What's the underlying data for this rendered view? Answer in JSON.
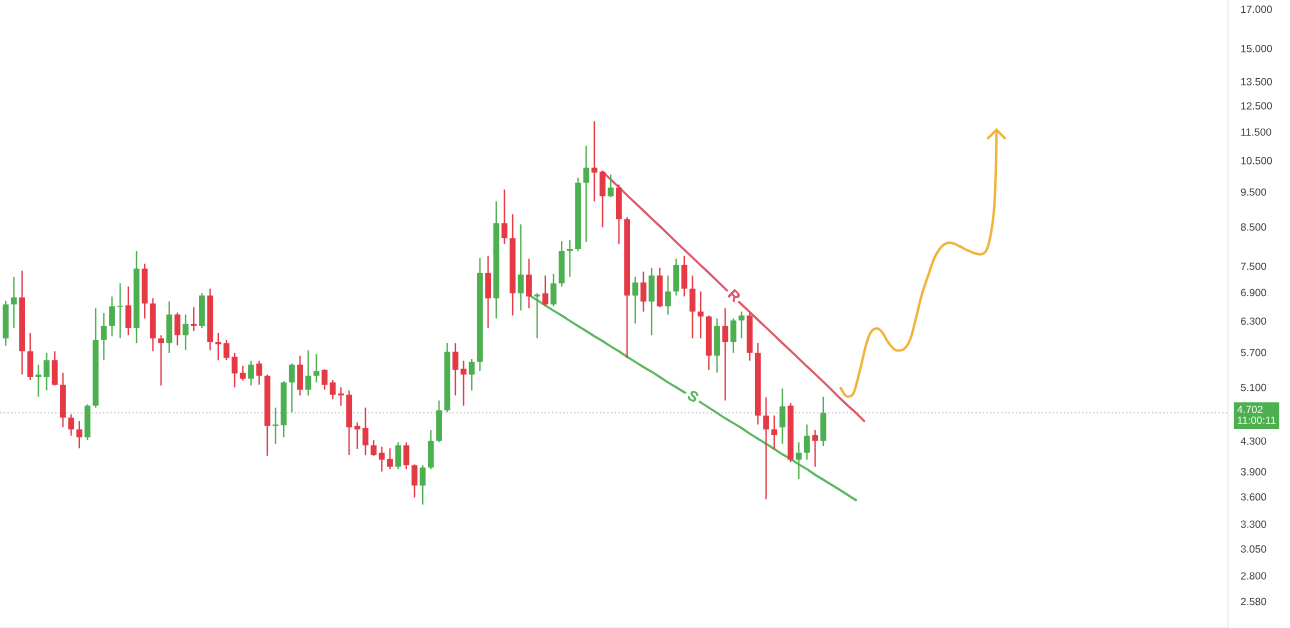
{
  "chart_data": {
    "type": "candlestick",
    "categories": [
      null,
      null,
      null,
      null,
      null,
      null,
      null,
      null,
      null,
      null,
      null,
      null,
      null,
      null,
      null,
      null,
      null,
      null,
      null,
      null,
      null,
      null,
      null,
      null,
      null,
      null,
      null,
      null,
      null,
      null,
      null,
      null,
      null,
      null,
      null,
      null,
      null,
      null,
      null,
      null,
      null,
      null,
      null,
      null,
      null,
      null,
      null,
      null,
      null,
      null,
      null,
      null,
      null,
      null,
      null,
      null,
      null,
      null,
      null,
      null,
      null,
      null,
      null,
      null,
      null,
      null,
      null,
      null,
      null,
      null,
      null,
      null,
      null,
      null,
      null,
      null,
      null,
      null,
      null,
      null,
      null,
      null,
      null,
      null,
      null,
      null,
      null,
      null,
      null,
      null,
      null,
      null,
      null,
      null,
      null,
      null,
      null,
      null,
      null,
      null,
      null,
      null,
      null,
      null,
      null,
      null,
      null,
      null,
      null,
      null,
      null,
      null,
      null,
      null,
      null,
      null,
      null,
      null,
      null,
      null,
      null,
      null,
      null,
      null,
      null,
      null,
      null,
      null,
      null,
      null,
      null,
      null,
      null,
      null,
      null,
      null,
      null,
      null,
      null,
      null,
      null,
      null,
      null,
      null,
      null,
      null,
      null,
      null,
      null,
      null
    ],
    "ohlc": [
      [
        5.96,
        6.72,
        5.82,
        6.64
      ],
      [
        6.64,
        7.25,
        6.16,
        6.79
      ],
      [
        6.79,
        7.39,
        5.31,
        5.72
      ],
      [
        5.72,
        6.06,
        5.22,
        5.27
      ],
      [
        5.27,
        5.48,
        4.95,
        5.31
      ],
      [
        5.27,
        5.69,
        5.05,
        5.56
      ],
      [
        5.56,
        5.72,
        5.13,
        5.14
      ],
      [
        5.14,
        5.34,
        4.49,
        4.63
      ],
      [
        4.63,
        4.68,
        4.37,
        4.46
      ],
      [
        4.46,
        4.58,
        4.2,
        4.35
      ],
      [
        4.35,
        4.83,
        4.31,
        4.81
      ],
      [
        4.81,
        6.56,
        4.78,
        5.93
      ],
      [
        5.93,
        6.46,
        5.56,
        6.2
      ],
      [
        6.2,
        6.81,
        6.0,
        6.6
      ],
      [
        6.59,
        7.1,
        5.96,
        6.61
      ],
      [
        6.62,
        7.03,
        6.02,
        6.16
      ],
      [
        6.16,
        7.87,
        5.87,
        7.44
      ],
      [
        7.44,
        7.56,
        6.35,
        6.66
      ],
      [
        6.66,
        6.77,
        5.72,
        5.96
      ],
      [
        5.96,
        6.02,
        5.13,
        5.87
      ],
      [
        5.87,
        6.7,
        5.69,
        6.43
      ],
      [
        6.43,
        6.47,
        5.83,
        6.02
      ],
      [
        6.02,
        6.43,
        5.74,
        6.24
      ],
      [
        6.24,
        6.58,
        6.1,
        6.2
      ],
      [
        6.2,
        6.88,
        6.16,
        6.83
      ],
      [
        6.83,
        6.98,
        5.74,
        5.89
      ],
      [
        5.89,
        6.06,
        5.56,
        5.85
      ],
      [
        5.87,
        5.93,
        5.56,
        5.6
      ],
      [
        5.62,
        5.69,
        5.1,
        5.33
      ],
      [
        5.34,
        5.46,
        5.21,
        5.24
      ],
      [
        5.24,
        5.55,
        5.13,
        5.48
      ],
      [
        5.5,
        5.55,
        5.14,
        5.29
      ],
      [
        5.29,
        5.31,
        4.1,
        4.51
      ],
      [
        4.51,
        4.78,
        4.26,
        4.53
      ],
      [
        4.52,
        5.2,
        4.35,
        5.18
      ],
      [
        5.18,
        5.5,
        4.71,
        5.48
      ],
      [
        5.48,
        5.64,
        4.97,
        5.06
      ],
      [
        5.06,
        5.74,
        4.97,
        5.29
      ],
      [
        5.29,
        5.67,
        5.18,
        5.37
      ],
      [
        5.39,
        5.4,
        5.06,
        5.14
      ],
      [
        5.18,
        5.22,
        4.91,
        4.98
      ],
      [
        5.0,
        5.1,
        4.81,
        4.97
      ],
      [
        4.98,
        5.05,
        4.11,
        4.49
      ],
      [
        4.51,
        4.56,
        4.19,
        4.46
      ],
      [
        4.48,
        4.78,
        4.11,
        4.24
      ],
      [
        4.24,
        4.31,
        4.1,
        4.11
      ],
      [
        4.14,
        4.22,
        3.9,
        4.05
      ],
      [
        4.06,
        4.2,
        3.93,
        3.96
      ],
      [
        3.96,
        4.28,
        3.93,
        4.24
      ],
      [
        4.24,
        4.28,
        3.93,
        3.98
      ],
      [
        3.98,
        3.99,
        3.59,
        3.73
      ],
      [
        3.73,
        3.98,
        3.51,
        3.95
      ],
      [
        3.95,
        4.45,
        3.93,
        4.3
      ],
      [
        4.3,
        4.89,
        4.28,
        4.74
      ],
      [
        4.74,
        5.87,
        4.71,
        5.71
      ],
      [
        5.71,
        5.87,
        4.97,
        5.39
      ],
      [
        5.41,
        5.55,
        4.81,
        5.31
      ],
      [
        5.31,
        5.58,
        5.05,
        5.53
      ],
      [
        5.53,
        7.7,
        5.37,
        7.34
      ],
      [
        7.34,
        7.75,
        6.16,
        6.77
      ],
      [
        6.77,
        9.22,
        6.35,
        8.6
      ],
      [
        8.6,
        9.57,
        8.05,
        8.2
      ],
      [
        8.2,
        8.85,
        6.41,
        6.88
      ],
      [
        6.88,
        8.57,
        6.51,
        7.3
      ],
      [
        7.3,
        7.68,
        6.56,
        6.81
      ],
      [
        6.81,
        6.88,
        5.96,
        6.85
      ],
      [
        6.88,
        7.28,
        6.6,
        6.64
      ],
      [
        6.64,
        7.32,
        6.6,
        7.1
      ],
      [
        7.1,
        8.12,
        7.03,
        7.87
      ],
      [
        7.87,
        8.15,
        7.25,
        7.92
      ],
      [
        7.92,
        9.94,
        7.87,
        9.78
      ],
      [
        9.78,
        11.0,
        8.1,
        10.26
      ],
      [
        10.26,
        11.9,
        9.22,
        10.1
      ],
      [
        10.13,
        10.16,
        8.49,
        9.37
      ],
      [
        9.37,
        10.04,
        9.34,
        9.63
      ],
      [
        9.63,
        9.73,
        8.05,
        8.71
      ],
      [
        8.71,
        8.77,
        5.6,
        6.83
      ],
      [
        6.83,
        7.25,
        6.25,
        7.12
      ],
      [
        7.12,
        7.37,
        6.49,
        6.7
      ],
      [
        6.7,
        7.46,
        6.02,
        7.28
      ],
      [
        7.28,
        7.46,
        6.58,
        6.6
      ],
      [
        6.6,
        7.28,
        6.43,
        6.92
      ],
      [
        6.92,
        7.68,
        6.83,
        7.53
      ],
      [
        7.53,
        7.75,
        6.81,
        6.98
      ],
      [
        6.98,
        7.28,
        5.96,
        6.49
      ],
      [
        6.49,
        6.92,
        5.96,
        6.39
      ],
      [
        6.39,
        6.41,
        5.39,
        5.64
      ],
      [
        5.64,
        6.35,
        5.34,
        6.2
      ],
      [
        6.2,
        6.56,
        4.89,
        5.89
      ],
      [
        5.89,
        6.35,
        5.69,
        6.31
      ],
      [
        6.31,
        6.49,
        5.96,
        6.41
      ],
      [
        6.41,
        6.46,
        5.55,
        5.69
      ],
      [
        5.69,
        5.87,
        4.53,
        4.66
      ],
      [
        4.66,
        4.94,
        3.57,
        4.46
      ],
      [
        4.46,
        4.66,
        4.19,
        4.38
      ],
      [
        4.49,
        5.08,
        4.26,
        4.8
      ],
      [
        4.81,
        4.85,
        4.02,
        4.05
      ],
      [
        4.05,
        4.28,
        3.81,
        4.14
      ],
      [
        4.14,
        4.53,
        4.05,
        4.37
      ],
      [
        4.38,
        4.45,
        3.96,
        4.3
      ],
      [
        4.3,
        4.95,
        4.23,
        4.7
      ],
      null,
      null,
      null,
      null,
      null,
      null,
      null,
      null,
      null,
      null,
      null,
      null,
      null,
      null,
      null,
      null,
      null,
      null,
      null,
      null,
      null,
      null,
      null,
      null,
      null,
      null,
      null,
      null,
      null,
      null,
      null,
      null,
      null,
      null,
      null,
      null,
      null,
      null,
      null,
      null,
      null,
      null,
      null,
      null,
      null,
      null,
      null,
      null,
      null
    ],
    "colors": [
      "#4caf50",
      "#4caf50",
      "#e53945",
      "#e53945",
      "#4caf50",
      "#4caf50",
      "#e53945",
      "#e53945",
      "#e53945",
      "#e53945",
      "#4caf50",
      "#4caf50",
      "#4caf50",
      "#4caf50",
      "#4caf50",
      "#e53945",
      "#4caf50",
      "#e53945",
      "#e53945",
      "#e53945",
      "#4caf50",
      "#e53945",
      "#4caf50",
      "#e53945",
      "#4caf50",
      "#e53945",
      "#e53945",
      "#e53945",
      "#e53945",
      "#e53945",
      "#4caf50",
      "#e53945",
      "#e53945",
      "#4caf50",
      "#4caf50",
      "#4caf50",
      "#e53945",
      "#4caf50",
      "#4caf50",
      "#e53945",
      "#e53945",
      "#e53945",
      "#e53945",
      "#e53945",
      "#e53945",
      "#e53945",
      "#e53945",
      "#e53945",
      "#4caf50",
      "#e53945",
      "#e53945",
      "#4caf50",
      "#4caf50",
      "#4caf50",
      "#4caf50",
      "#e53945",
      "#e53945",
      "#4caf50",
      "#4caf50",
      "#e53945",
      "#4caf50",
      "#e53945",
      "#e53945",
      "#4caf50",
      "#e53945",
      "#4caf50",
      "#e53945",
      "#4caf50",
      "#4caf50",
      "#4caf50",
      "#4caf50",
      "#4caf50",
      "#e53945",
      "#e53945",
      "#4caf50",
      "#e53945",
      "#e53945",
      "#4caf50",
      "#e53945",
      "#4caf50",
      "#e53945",
      "#4caf50",
      "#4caf50",
      "#e53945",
      "#e53945",
      "#e53945",
      "#e53945",
      "#4caf50",
      "#e53945",
      "#4caf50",
      "#4caf50",
      "#e53945",
      "#e53945",
      "#e53945",
      "#e53945",
      "#4caf50",
      "#e53945",
      "#4caf50",
      "#4caf50",
      "#e53945",
      "#4caf50",
      null,
      null,
      null,
      null,
      null,
      null,
      null,
      null,
      null,
      null,
      null,
      null,
      null,
      null,
      null,
      null,
      null,
      null,
      null,
      null,
      null,
      null,
      null,
      null,
      null,
      null,
      null,
      null,
      null,
      null,
      null,
      null,
      null,
      null,
      null,
      null,
      null,
      null,
      null,
      null,
      null,
      null,
      null,
      null,
      null,
      null,
      null,
      null,
      null
    ],
    "series": [
      {
        "type": "line",
        "name": "R",
        "color": "#e0596a",
        "values": [
          null,
          null,
          null,
          null,
          null,
          null,
          null,
          null,
          null,
          null,
          null,
          null,
          null,
          null,
          null,
          null,
          null,
          null,
          null,
          null,
          null,
          null,
          null,
          null,
          null,
          null,
          null,
          null,
          null,
          null,
          null,
          null,
          null,
          null,
          null,
          null,
          null,
          null,
          null,
          null,
          null,
          null,
          null,
          null,
          null,
          null,
          null,
          null,
          null,
          null,
          null,
          null,
          null,
          null,
          null,
          null,
          null,
          null,
          null,
          null,
          null,
          null,
          null,
          null,
          null,
          null,
          null,
          null,
          null,
          null,
          null,
          null,
          null,
          10.13,
          9.88,
          9.64,
          9.4,
          9.17,
          8.95,
          8.73,
          8.52,
          8.31,
          8.1,
          7.9,
          7.71,
          7.52,
          7.34,
          7.16,
          6.98,
          6.81,
          6.64,
          6.48,
          6.32,
          6.17,
          6.02,
          5.87,
          5.73,
          5.59,
          5.45,
          5.32,
          5.19,
          5.06,
          4.93,
          4.81,
          4.7,
          4.58,
          null,
          null,
          null,
          null,
          null,
          null,
          null,
          null,
          null,
          null,
          null,
          null,
          null,
          null,
          null,
          null,
          null,
          null,
          null,
          null,
          null,
          null,
          null,
          null,
          null,
          null,
          null,
          null,
          null,
          null,
          null,
          null,
          null,
          null,
          null,
          null,
          null,
          null,
          null,
          null,
          null,
          null,
          null,
          null
        ]
      },
      {
        "type": "line",
        "name": "S",
        "color": "#5cb860",
        "values": [
          null,
          null,
          null,
          null,
          null,
          null,
          null,
          null,
          null,
          null,
          null,
          null,
          null,
          null,
          null,
          null,
          null,
          null,
          null,
          null,
          null,
          null,
          null,
          null,
          null,
          null,
          null,
          null,
          null,
          null,
          null,
          null,
          null,
          null,
          null,
          null,
          null,
          null,
          null,
          null,
          null,
          null,
          null,
          null,
          null,
          null,
          null,
          null,
          null,
          null,
          null,
          null,
          null,
          null,
          null,
          null,
          null,
          null,
          null,
          null,
          null,
          null,
          null,
          null,
          6.84,
          6.73,
          6.62,
          6.51,
          6.41,
          6.3,
          6.2,
          6.1,
          6.0,
          5.91,
          5.81,
          5.72,
          5.62,
          5.53,
          5.44,
          5.36,
          5.27,
          5.18,
          5.1,
          5.02,
          4.94,
          4.86,
          4.78,
          4.7,
          4.62,
          4.55,
          4.48,
          4.4,
          4.33,
          4.26,
          4.19,
          4.12,
          4.06,
          3.99,
          3.93,
          3.86,
          3.8,
          3.74,
          3.68,
          3.62,
          3.56,
          null,
          null,
          null,
          null,
          null,
          null,
          null,
          null,
          null,
          null,
          null,
          null,
          null,
          null,
          null,
          null,
          null,
          null,
          null,
          null,
          null,
          null,
          null,
          null,
          null,
          null,
          null,
          null,
          null,
          null,
          null,
          null,
          null,
          null,
          null,
          null,
          null,
          null,
          null,
          null,
          null,
          null,
          null,
          null,
          null
        ]
      }
    ],
    "log": true,
    "ylim": [
      2.37,
      17.5
    ],
    "yticks": [
      {
        "value": 2.58,
        "label": "2.580"
      },
      {
        "value": 2.8,
        "label": "2.800"
      },
      {
        "value": 3.05,
        "label": "3.050"
      },
      {
        "value": 3.3,
        "label": "3.300"
      },
      {
        "value": 3.6,
        "label": "3.600"
      },
      {
        "value": 3.9,
        "label": "3.900"
      },
      {
        "value": 4.3,
        "label": "4.300"
      },
      {
        "value": 5.1,
        "label": "5.100"
      },
      {
        "value": 5.7,
        "label": "5.700"
      },
      {
        "value": 6.3,
        "label": "6.300"
      },
      {
        "value": 6.9,
        "label": "6.900"
      },
      {
        "value": 7.5,
        "label": "7.500"
      },
      {
        "value": 8.5,
        "label": "8.500"
      },
      {
        "value": 9.5,
        "label": "9.500"
      },
      {
        "value": 10.5,
        "label": "10.500"
      },
      {
        "value": 11.5,
        "label": "11.500"
      },
      {
        "value": 12.5,
        "label": "12.500"
      },
      {
        "value": 13.5,
        "label": "13.500"
      },
      {
        "value": 15,
        "label": "15.000"
      },
      {
        "value": 17,
        "label": "17.000"
      }
    ],
    "tick_labels": "y",
    "grid": false,
    "legend": false,
    "ref_lines": [
      {
        "axis": "y",
        "value": 4.702,
        "label": "4.702\n11:00:11",
        "color": "#cfcfcf",
        "line_style": "dotted"
      }
    ]
  }
}
